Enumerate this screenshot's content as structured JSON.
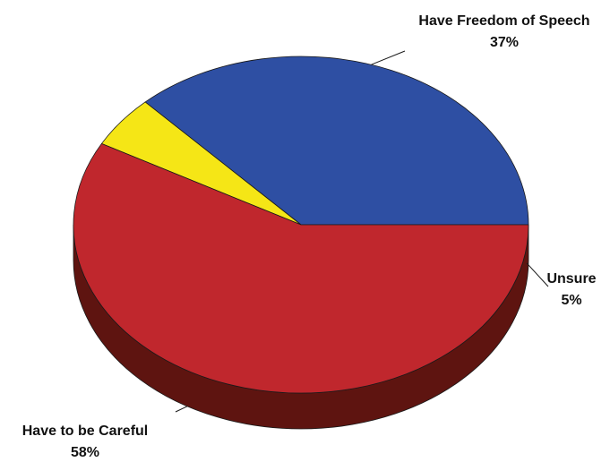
{
  "chart_data": {
    "type": "pie",
    "style": "3d",
    "title": "",
    "slices": [
      {
        "label": "Have Freedom of Speech",
        "value": 37,
        "value_label": "37%",
        "color": "#2e4fa3",
        "side_color": "#1c3066"
      },
      {
        "label": "Unsure",
        "value": 5,
        "value_label": "5%",
        "color": "#f5e616",
        "side_color": "#8c8620"
      },
      {
        "label": "Have to be Careful",
        "value": 58,
        "value_label": "58%",
        "color": "#c0272d",
        "side_color": "#5e1410"
      }
    ]
  }
}
